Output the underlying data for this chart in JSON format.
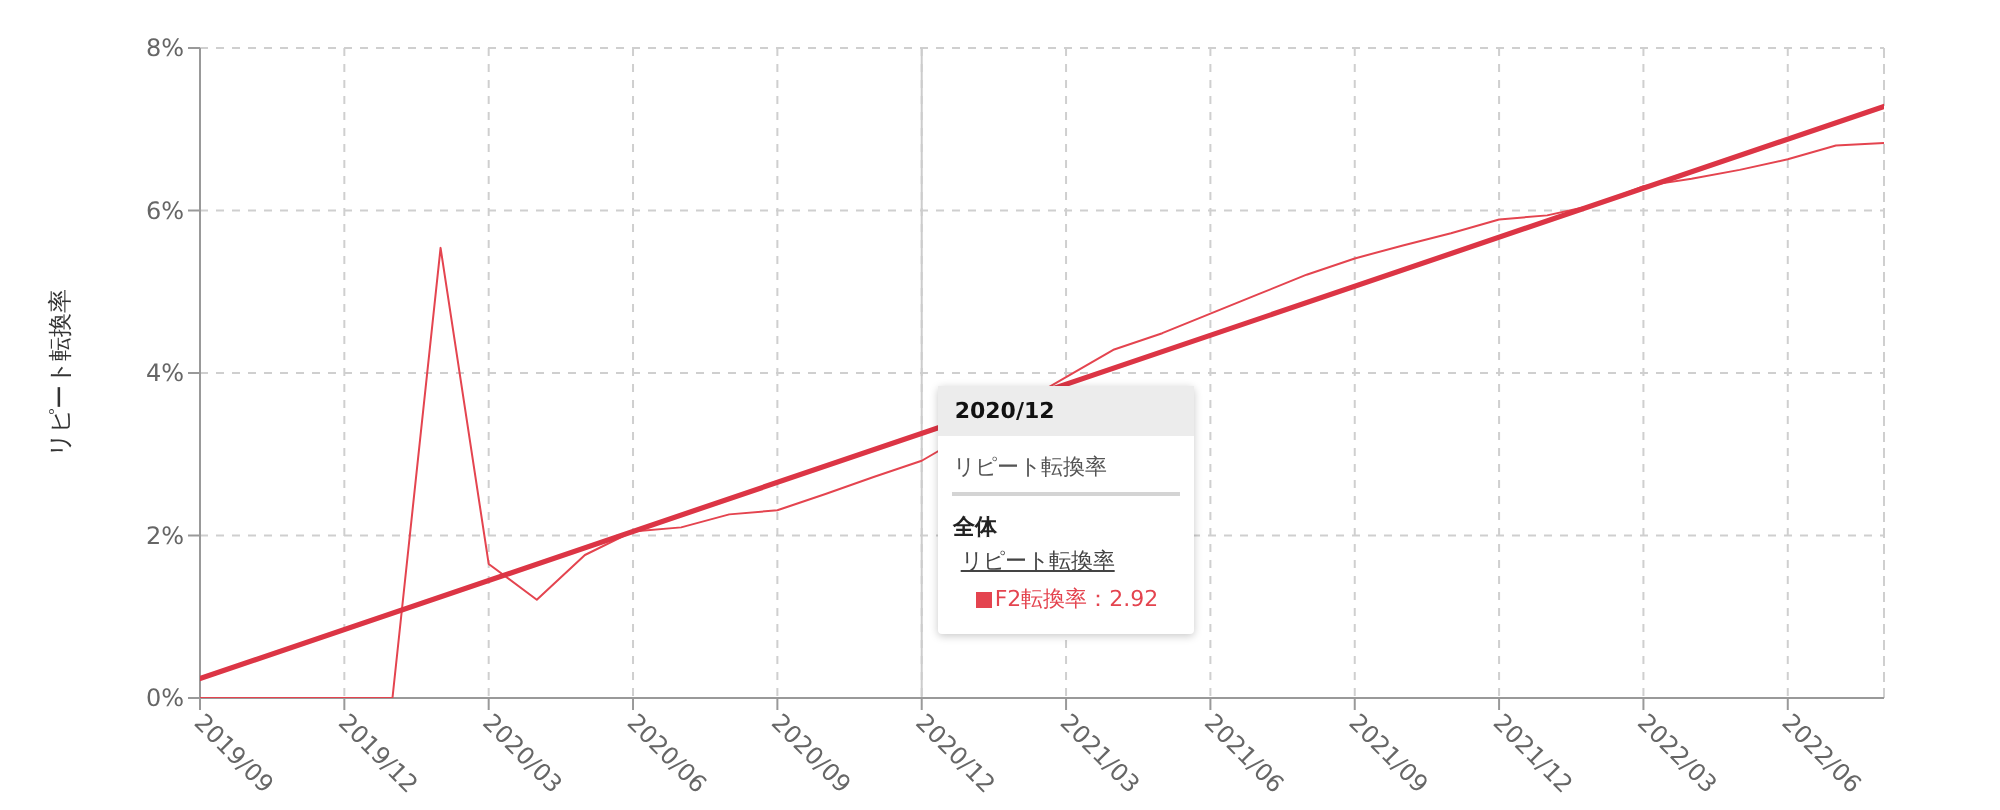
{
  "chart_data": {
    "type": "line",
    "ylabel": "リピート転換率",
    "x": [
      "2019-09",
      "2019-10",
      "2019-11",
      "2019-12",
      "2020-01",
      "2020-02",
      "2020-03",
      "2020-04",
      "2020-05",
      "2020-06",
      "2020-07",
      "2020-08",
      "2020-09",
      "2020-10",
      "2020-11",
      "2020-12",
      "2021-01",
      "2021-02",
      "2021-03",
      "2021-04",
      "2021-05",
      "2021-06",
      "2021-07",
      "2021-08",
      "2021-09",
      "2021-10",
      "2021-11",
      "2021-12",
      "2022-01",
      "2022-02",
      "2022-03",
      "2022-04",
      "2022-05",
      "2022-06",
      "2022-07",
      "2022-08"
    ],
    "series": [
      {
        "color": "#e4444f",
        "values": [
          0,
          0,
          0,
          0,
          0,
          5.54,
          1.65,
          1.21,
          1.76,
          2.05,
          2.1,
          2.26,
          2.31,
          2.51,
          2.72,
          2.92,
          null,
          null,
          3.95,
          4.29,
          4.49,
          4.73,
          4.97,
          5.21,
          5.41,
          5.57,
          5.72,
          5.89,
          5.94,
          6.07,
          6.3,
          6.39,
          6.5,
          6.63,
          6.8,
          6.83
        ]
      },
      {
        "type": "line",
        "color": "#dc3545",
        "x": [
          "2019-09",
          "2022-08"
        ],
        "values": [
          0.24,
          7.28
        ]
      }
    ],
    "xlim": [
      "2019-09",
      "2022-08"
    ],
    "xticks": [
      {
        "value": "2019-09",
        "label": "2019/09"
      },
      {
        "value": "2019-12",
        "label": "2019/12"
      },
      {
        "value": "2020-03",
        "label": "2020/03"
      },
      {
        "value": "2020-06",
        "label": "2020/06"
      },
      {
        "value": "2020-09",
        "label": "2020/09"
      },
      {
        "value": "2020-12",
        "label": "2020/12"
      },
      {
        "value": "2021-03",
        "label": "2021/03"
      },
      {
        "value": "2021-06",
        "label": "2021/06"
      },
      {
        "value": "2021-09",
        "label": "2021/09"
      },
      {
        "value": "2021-12",
        "label": "2021/12"
      },
      {
        "value": "2022-03",
        "label": "2022/03"
      },
      {
        "value": "2022-06",
        "label": "2022/06"
      }
    ],
    "ylim": [
      0,
      8
    ],
    "yticks": [
      {
        "value": 0,
        "label": "0%"
      },
      {
        "value": 2,
        "label": "2%"
      },
      {
        "value": 4,
        "label": "4%"
      },
      {
        "value": 6,
        "label": "6%"
      },
      {
        "value": 8,
        "label": "8%"
      }
    ],
    "grid": true,
    "marker": "none",
    "ref_lines": [
      {
        "axis": "x",
        "value": "2020-12",
        "color": "#cccccc"
      }
    ],
    "annotations": [
      "2020/12",
      "リピート転換率",
      "全体",
      "リピート転換率",
      "F2転換率：2.92"
    ]
  }
}
